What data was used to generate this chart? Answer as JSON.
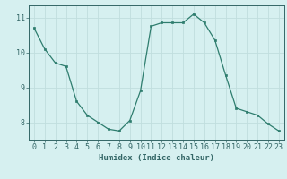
{
  "x": [
    0,
    1,
    2,
    3,
    4,
    5,
    6,
    7,
    8,
    9,
    10,
    11,
    12,
    13,
    14,
    15,
    16,
    17,
    18,
    19,
    20,
    21,
    22,
    23
  ],
  "y": [
    10.7,
    10.1,
    9.7,
    9.6,
    8.6,
    8.2,
    8.0,
    7.8,
    7.75,
    8.05,
    8.9,
    10.75,
    10.85,
    10.85,
    10.85,
    11.1,
    10.85,
    10.35,
    9.35,
    8.4,
    8.3,
    8.2,
    7.95,
    7.75
  ],
  "line_color": "#2e7d6e",
  "marker": "s",
  "marker_size": 1.8,
  "bg_color": "#d6f0f0",
  "grid_color": "#c0dede",
  "xlabel": "Humidex (Indice chaleur)",
  "ylim": [
    7.5,
    11.35
  ],
  "xlim": [
    -0.5,
    23.5
  ],
  "yticks": [
    8,
    9,
    10,
    11
  ],
  "xticks": [
    0,
    1,
    2,
    3,
    4,
    5,
    6,
    7,
    8,
    9,
    10,
    11,
    12,
    13,
    14,
    15,
    16,
    17,
    18,
    19,
    20,
    21,
    22,
    23
  ],
  "tick_color": "#336666",
  "axis_color": "#336666",
  "label_fontsize": 6.5,
  "tick_fontsize": 6.0
}
